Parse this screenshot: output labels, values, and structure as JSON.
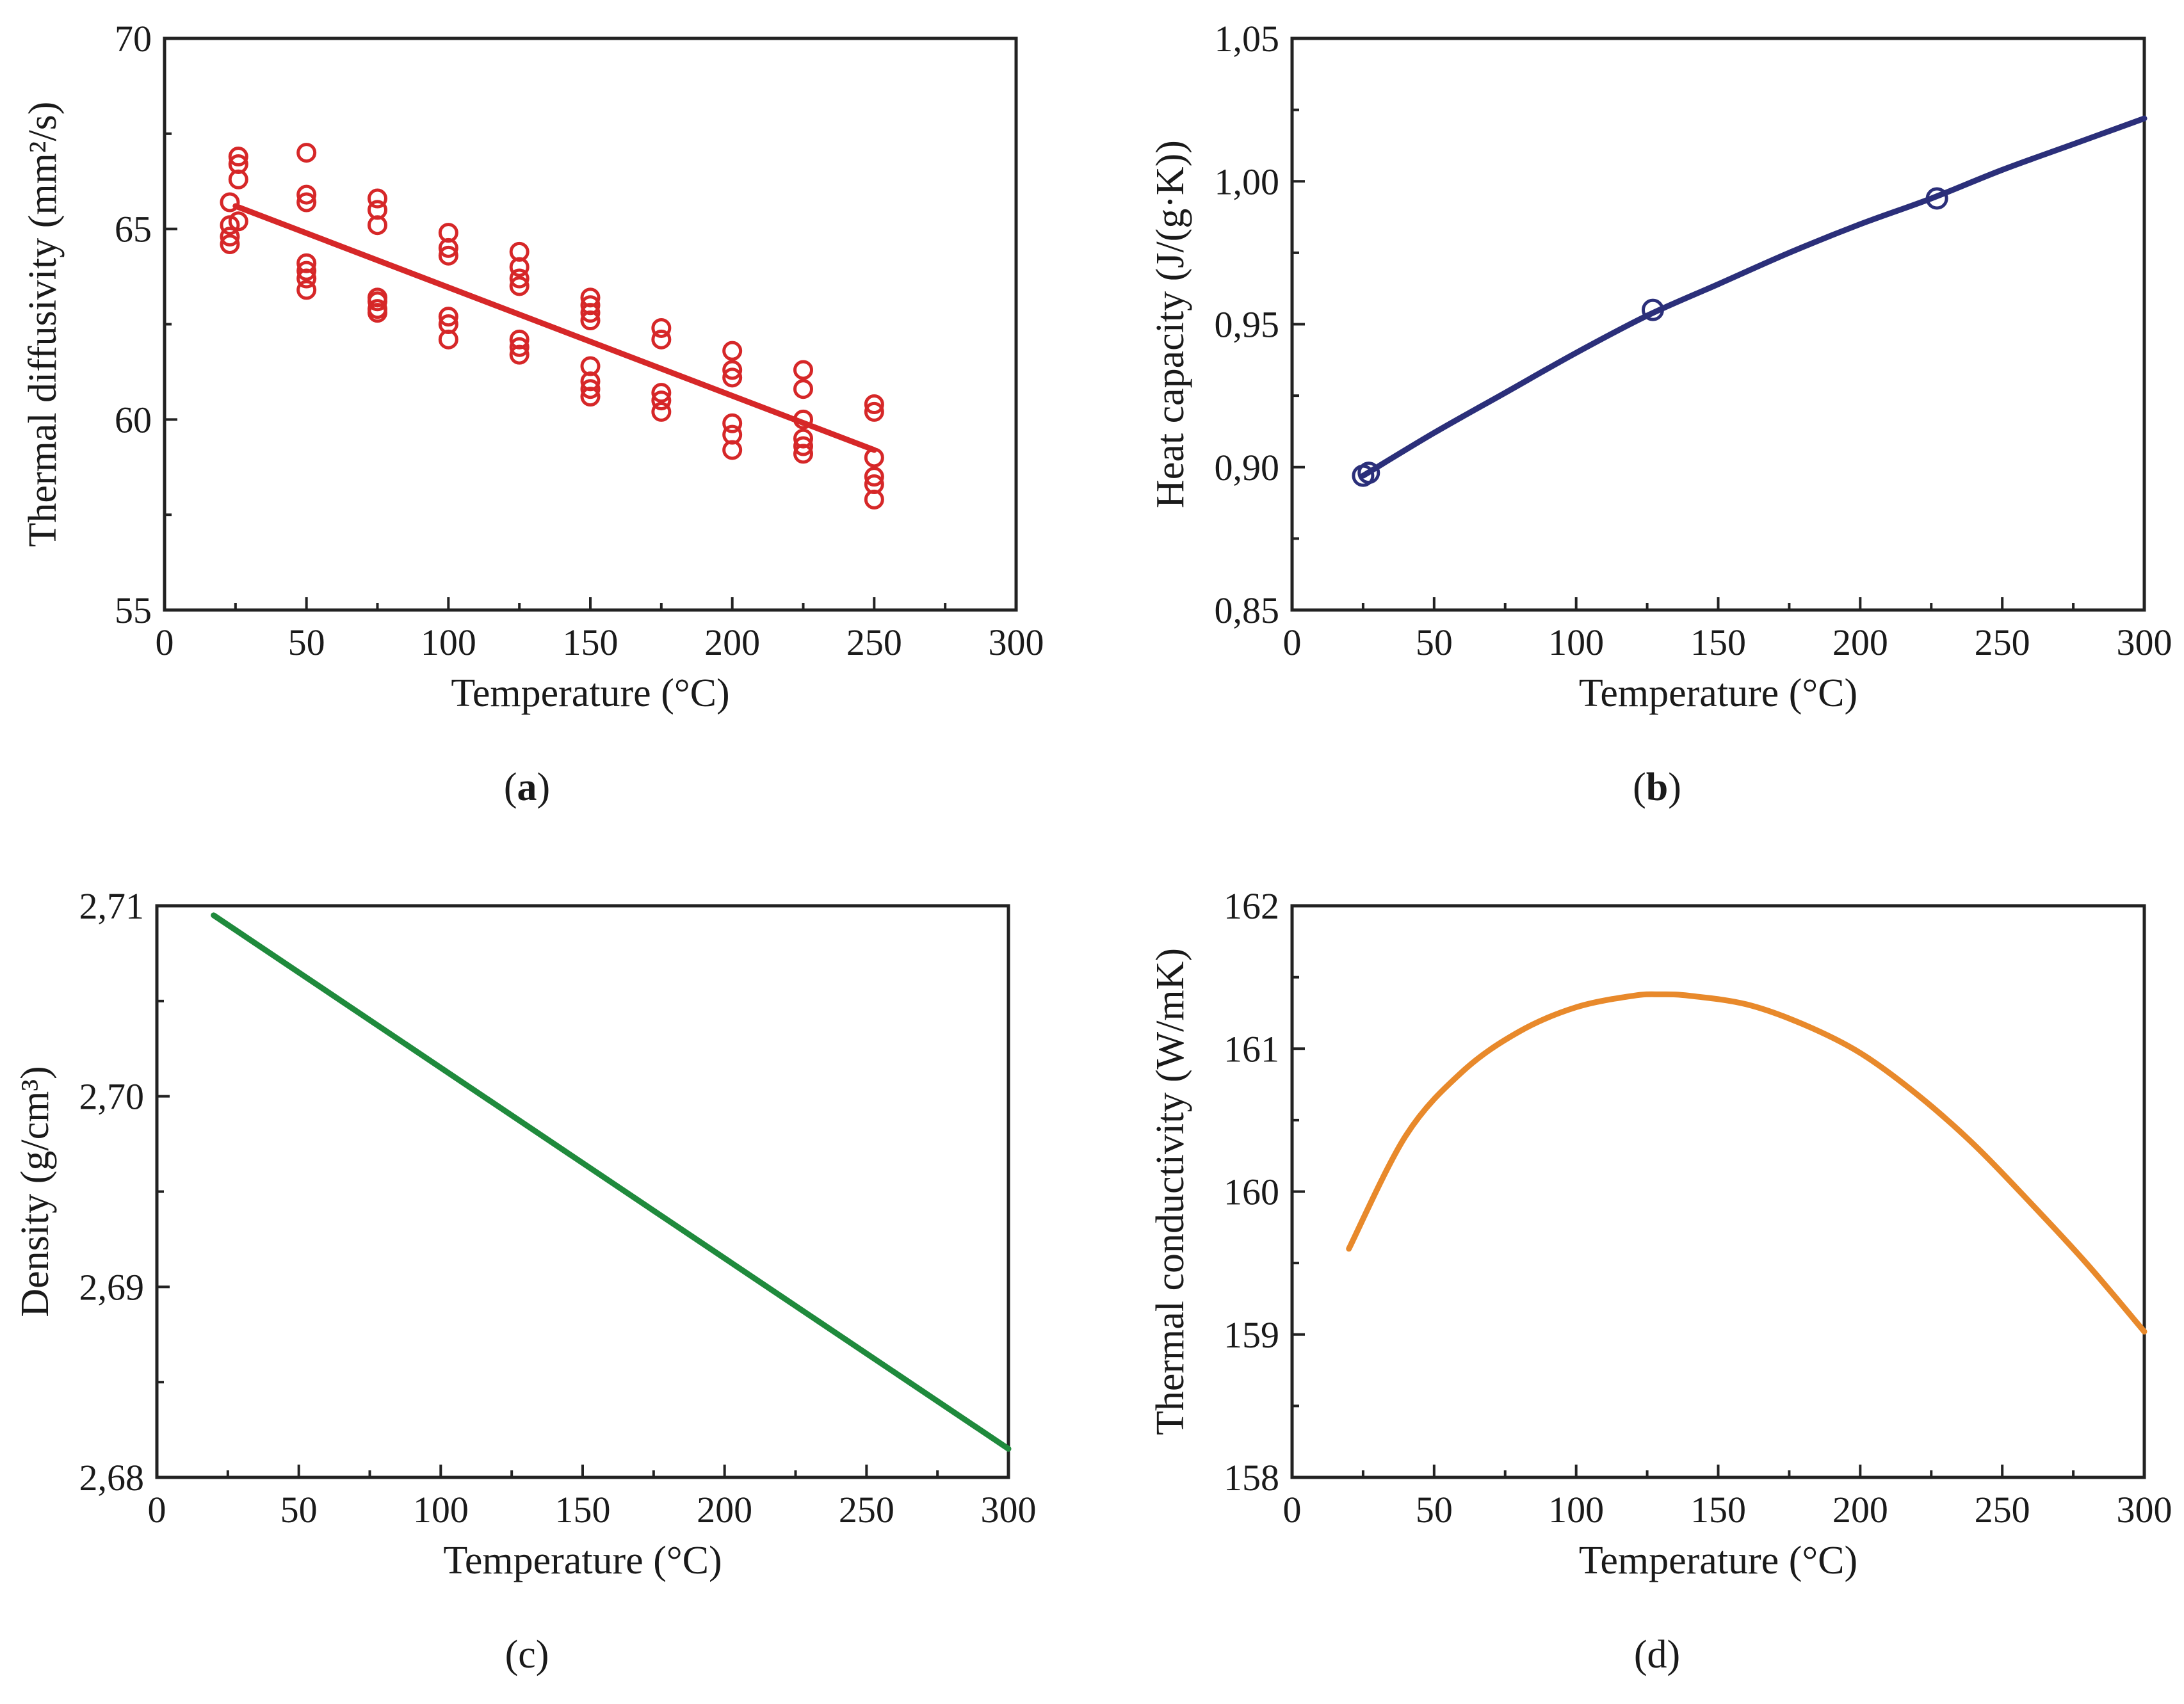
{
  "chart_data": [
    {
      "type": "scatter",
      "panel_label": "(a)",
      "panel_label_parts": {
        "pre": "(",
        "letter": "a",
        "post": ")"
      },
      "xlabel": "Temperature (°C)",
      "ylabel": "Thermal diffusivity (mm²/s)",
      "xlim": [
        0,
        300
      ],
      "ylim": [
        55,
        70
      ],
      "xticks": [
        "0",
        "50",
        "100",
        "150",
        "200",
        "250",
        "300"
      ],
      "yticks": [
        "55",
        "60",
        "65",
        "70"
      ],
      "color": "#d62728",
      "series": [
        {
          "kind": "markers",
          "x": [
            23,
            23,
            23,
            23,
            26,
            26,
            26,
            26,
            50,
            50,
            50,
            50,
            50,
            50,
            50,
            75,
            75,
            75,
            75,
            75,
            75,
            75,
            100,
            100,
            100,
            100,
            100,
            100,
            125,
            125,
            125,
            125,
            125,
            125,
            125,
            150,
            150,
            150,
            150,
            150,
            150,
            150,
            150,
            175,
            175,
            175,
            175,
            175,
            200,
            200,
            200,
            200,
            200,
            200,
            225,
            225,
            225,
            225,
            225,
            225,
            250,
            250,
            250,
            250,
            250,
            250
          ],
          "y": [
            65.7,
            65.1,
            64.8,
            64.6,
            66.9,
            66.7,
            66.3,
            65.2,
            67.0,
            65.9,
            65.7,
            64.1,
            63.9,
            63.7,
            63.4,
            65.8,
            65.5,
            65.1,
            63.2,
            63.1,
            62.9,
            62.8,
            64.9,
            64.5,
            64.3,
            62.7,
            62.5,
            62.1,
            64.4,
            64.0,
            63.7,
            63.5,
            62.1,
            61.9,
            61.7,
            63.2,
            63.0,
            62.8,
            62.6,
            61.4,
            61.0,
            60.8,
            60.6,
            62.4,
            62.1,
            60.7,
            60.5,
            60.2,
            61.8,
            61.3,
            61.1,
            59.9,
            59.6,
            59.2,
            61.3,
            60.8,
            60.0,
            59.5,
            59.3,
            59.1,
            60.4,
            60.2,
            59.0,
            58.5,
            58.3,
            57.9
          ]
        },
        {
          "kind": "fit-line",
          "x": [
            25,
            250
          ],
          "y": [
            65.6,
            59.2
          ]
        }
      ]
    },
    {
      "type": "line",
      "panel_label": "(b)",
      "panel_label_parts": {
        "pre": "(",
        "letter": "b",
        "post": ")"
      },
      "xlabel": "Temperature (°C)",
      "ylabel": "Heat capacity (J/(g·K))",
      "xlim": [
        0,
        300
      ],
      "ylim": [
        0.85,
        1.05
      ],
      "xticks": [
        "0",
        "50",
        "100",
        "150",
        "200",
        "250",
        "300"
      ],
      "yticks": [
        "0,85",
        "0,90",
        "0,95",
        "1,00",
        "1,05"
      ],
      "color": "#2b2f7a",
      "series": [
        {
          "kind": "curve",
          "x": [
            25,
            50,
            75,
            100,
            125,
            150,
            175,
            200,
            225,
            250,
            275,
            300
          ],
          "y": [
            0.897,
            0.912,
            0.926,
            0.94,
            0.953,
            0.964,
            0.975,
            0.985,
            0.994,
            1.004,
            1.013,
            1.022
          ]
        },
        {
          "kind": "markers",
          "x": [
            25,
            27,
            127,
            227
          ],
          "y": [
            0.897,
            0.898,
            0.955,
            0.994
          ]
        }
      ]
    },
    {
      "type": "line",
      "panel_label": "(c)",
      "panel_label_parts": {
        "pre": "(",
        "letter": "c",
        "post": ")"
      },
      "xlabel": "Temperature (°C)",
      "ylabel": "Density (g/cm³)",
      "xlim": [
        0,
        300
      ],
      "ylim": [
        2.68,
        2.71
      ],
      "xticks": [
        "0",
        "50",
        "100",
        "150",
        "200",
        "250",
        "300"
      ],
      "yticks": [
        "2,68",
        "2,69",
        "2,70",
        "2,71"
      ],
      "color": "#1f8a3c",
      "series": [
        {
          "kind": "curve",
          "x": [
            20,
            300
          ],
          "y": [
            2.7095,
            2.6815
          ]
        }
      ]
    },
    {
      "type": "line",
      "panel_label": "(d)",
      "panel_label_parts": {
        "pre": "(",
        "letter": "d",
        "post": ")"
      },
      "xlabel": "Temperature (°C)",
      "ylabel": "Thermal conductivity (W/mK)",
      "xlim": [
        0,
        300
      ],
      "ylim": [
        158,
        162
      ],
      "xticks": [
        "0",
        "50",
        "100",
        "150",
        "200",
        "250",
        "300"
      ],
      "yticks": [
        "158",
        "159",
        "160",
        "161",
        "162"
      ],
      "color": "#e8892b",
      "series": [
        {
          "kind": "curve",
          "x": [
            20,
            40,
            60,
            80,
            100,
            120,
            130,
            140,
            160,
            180,
            200,
            220,
            240,
            260,
            280,
            300
          ],
          "y": [
            159.6,
            160.39,
            160.84,
            161.12,
            161.29,
            161.37,
            161.38,
            161.37,
            161.31,
            161.17,
            160.97,
            160.68,
            160.33,
            159.92,
            159.49,
            159.02
          ]
        }
      ]
    }
  ]
}
